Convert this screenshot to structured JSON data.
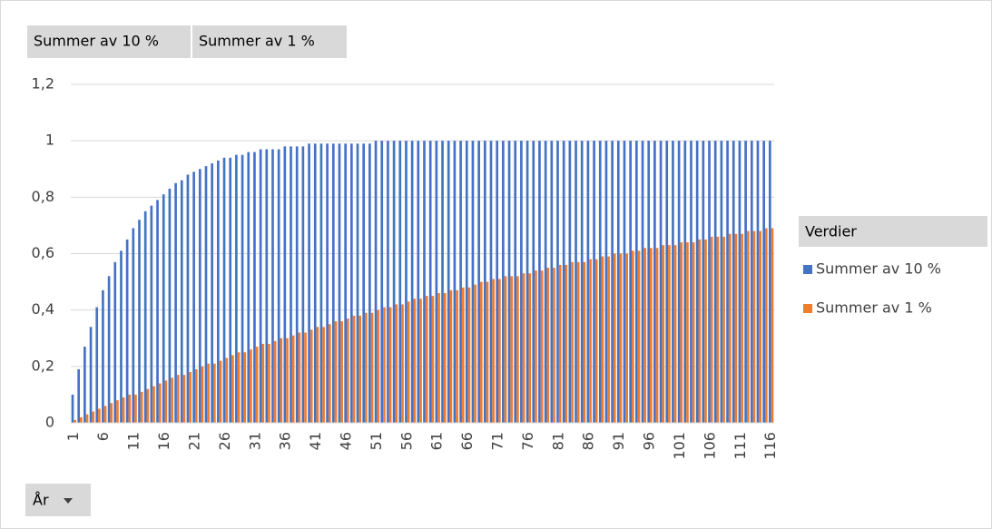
{
  "chart_data": {
    "type": "bar",
    "value_field_buttons": [
      "Summer av 10 %",
      "Summer av 1 %"
    ],
    "axis_field_button": "År",
    "legend_title": "Verdier",
    "categories": [
      "1",
      null,
      null,
      null,
      null,
      "6",
      null,
      null,
      null,
      null,
      "11",
      null,
      null,
      null,
      null,
      "16",
      null,
      null,
      null,
      null,
      "21",
      null,
      null,
      null,
      null,
      "26",
      null,
      null,
      null,
      null,
      "31",
      null,
      null,
      null,
      null,
      "36",
      null,
      null,
      null,
      null,
      "41",
      null,
      null,
      null,
      null,
      "46",
      null,
      null,
      null,
      null,
      "51",
      null,
      null,
      null,
      null,
      "56",
      null,
      null,
      null,
      null,
      "61",
      null,
      null,
      null,
      null,
      "66",
      null,
      null,
      null,
      null,
      "71",
      null,
      null,
      null,
      null,
      "76",
      null,
      null,
      null,
      null,
      "81",
      null,
      null,
      null,
      null,
      "86",
      null,
      null,
      null,
      null,
      "91",
      null,
      null,
      null,
      null,
      "96",
      null,
      null,
      null,
      null,
      "101",
      null,
      null,
      null,
      null,
      "106",
      null,
      null,
      null,
      null,
      "111",
      null,
      null,
      null,
      null,
      "116"
    ],
    "series": [
      {
        "name": "Summer av 10 %",
        "color": "#4472c4",
        "values": [
          0.1,
          0.19,
          0.27,
          0.34,
          0.41,
          0.47,
          0.52,
          0.57,
          0.61,
          0.65,
          0.69,
          0.72,
          0.75,
          0.77,
          0.79,
          0.81,
          0.83,
          0.85,
          0.86,
          0.88,
          0.89,
          0.9,
          0.91,
          0.92,
          0.93,
          0.94,
          0.94,
          0.95,
          0.95,
          0.96,
          0.96,
          0.97,
          0.97,
          0.97,
          0.97,
          0.98,
          0.98,
          0.98,
          0.98,
          0.99,
          0.99,
          0.99,
          0.99,
          0.99,
          0.99,
          0.99,
          0.99,
          0.99,
          0.99,
          0.99,
          1,
          1,
          1,
          1,
          1,
          1,
          1,
          1,
          1,
          1,
          1,
          1,
          1,
          1,
          1,
          1,
          1,
          1,
          1,
          1,
          1,
          1,
          1,
          1,
          1,
          1,
          1,
          1,
          1,
          1,
          1,
          1,
          1,
          1,
          1,
          1,
          1,
          1,
          1,
          1,
          1,
          1,
          1,
          1,
          1,
          1,
          1,
          1,
          1,
          1,
          1,
          1,
          1,
          1,
          1,
          1,
          1,
          1,
          1,
          1,
          1,
          1,
          1,
          1,
          1,
          1
        ]
      },
      {
        "name": "Summer av 1 %",
        "color": "#ed7d31",
        "values": [
          0.01,
          0.02,
          0.03,
          0.04,
          0.05,
          0.06,
          0.07,
          0.08,
          0.09,
          0.1,
          0.1,
          0.11,
          0.12,
          0.13,
          0.14,
          0.15,
          0.16,
          0.17,
          0.17,
          0.18,
          0.19,
          0.2,
          0.21,
          0.21,
          0.22,
          0.23,
          0.24,
          0.25,
          0.25,
          0.26,
          0.27,
          0.28,
          0.28,
          0.29,
          0.3,
          0.3,
          0.31,
          0.32,
          0.32,
          0.33,
          0.34,
          0.34,
          0.35,
          0.36,
          0.36,
          0.37,
          0.38,
          0.38,
          0.39,
          0.39,
          0.4,
          0.41,
          0.41,
          0.42,
          0.42,
          0.43,
          0.44,
          0.44,
          0.45,
          0.45,
          0.46,
          0.46,
          0.47,
          0.47,
          0.48,
          0.48,
          0.49,
          0.5,
          0.5,
          0.51,
          0.51,
          0.52,
          0.52,
          0.52,
          0.53,
          0.53,
          0.54,
          0.54,
          0.55,
          0.55,
          0.56,
          0.56,
          0.57,
          0.57,
          0.57,
          0.58,
          0.58,
          0.59,
          0.59,
          0.6,
          0.6,
          0.6,
          0.61,
          0.61,
          0.62,
          0.62,
          0.62,
          0.63,
          0.63,
          0.63,
          0.64,
          0.64,
          0.64,
          0.65,
          0.65,
          0.66,
          0.66,
          0.66,
          0.67,
          0.67,
          0.67,
          0.68,
          0.68,
          0.68,
          0.69,
          0.69
        ]
      }
    ],
    "ylim": [
      0,
      1.2
    ],
    "yticks": [
      0,
      {
        "value": 0.2,
        "label": "0,2"
      },
      {
        "value": 0.4,
        "label": "0,4"
      },
      {
        "value": 0.6,
        "label": "0,6"
      },
      {
        "value": 0.8,
        "label": "0,8"
      },
      1,
      {
        "value": 1.2,
        "label": "1,2"
      }
    ],
    "grid": true
  }
}
